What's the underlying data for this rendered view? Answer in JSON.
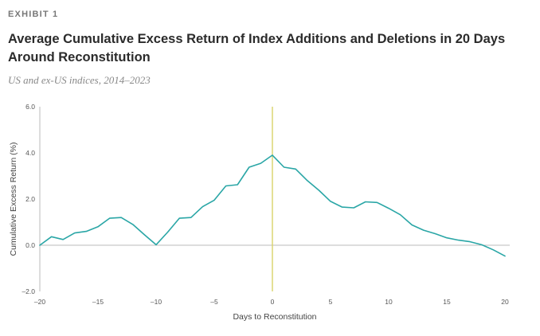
{
  "header": {
    "exhibit": "EXHIBIT 1",
    "title": "Average Cumulative Excess Return of Index Additions and Deletions in 20 Days Around Reconstitution",
    "subtitle": "US and ex-US indices, 2014–2023"
  },
  "chart_data": {
    "type": "line",
    "xlabel": "Days to Reconstitution",
    "ylabel": "Cumulative Excess Return (%)",
    "xlim": [
      -20,
      20
    ],
    "ylim": [
      -2.0,
      6.0
    ],
    "xticks": [
      -20,
      -15,
      -10,
      -5,
      0,
      5,
      10,
      15,
      20
    ],
    "xtick_labels": [
      "–20",
      "–15",
      "–10",
      "–5",
      "0",
      "5",
      "10",
      "15",
      "20"
    ],
    "yticks": [
      -2.0,
      0.0,
      2.0,
      4.0,
      6.0
    ],
    "ytick_labels": [
      "–2.0",
      "0.0",
      "2.0",
      "4.0",
      "6.0"
    ],
    "grid": false,
    "zero_line": true,
    "vertical_marker_x": 0,
    "colors": {
      "line": "#2aa6a6",
      "marker": "#d9d36a",
      "axis": "#bbbbbb"
    },
    "series": [
      {
        "x": [
          -20,
          -19,
          -18,
          -17,
          -16,
          -15,
          -14,
          -13,
          -12,
          -11,
          -10,
          -9,
          -8,
          -7,
          -6,
          -5,
          -4,
          -3,
          -2,
          -1,
          0,
          1,
          2,
          3,
          4,
          5,
          6,
          7,
          8,
          9,
          10,
          11,
          12,
          13,
          14,
          15,
          16,
          17,
          18,
          19,
          20
        ],
        "values": [
          0.0,
          0.37,
          0.25,
          0.53,
          0.6,
          0.8,
          1.17,
          1.2,
          0.9,
          0.45,
          0.02,
          0.57,
          1.17,
          1.2,
          1.67,
          1.95,
          2.57,
          2.62,
          3.38,
          3.55,
          3.9,
          3.38,
          3.3,
          2.8,
          2.38,
          1.9,
          1.65,
          1.62,
          1.88,
          1.85,
          1.6,
          1.32,
          0.88,
          0.65,
          0.5,
          0.32,
          0.22,
          0.15,
          0.02,
          -0.2,
          -0.47
        ]
      }
    ]
  }
}
